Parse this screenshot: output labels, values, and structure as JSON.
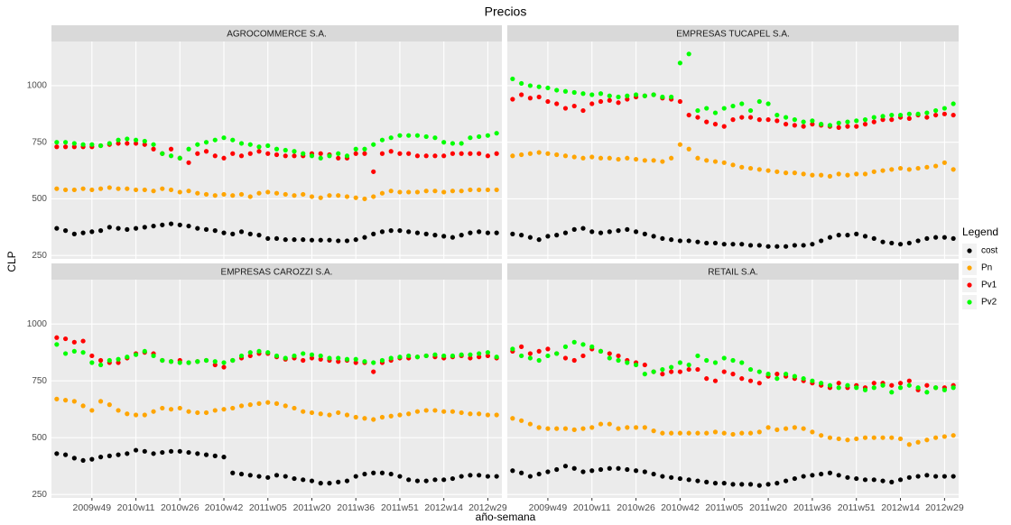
{
  "chart_data": {
    "type": "scatter",
    "title": "Precios",
    "x_label": "año-semana",
    "y_label": "CLP",
    "legend_title": "Legend",
    "legend_position": "right",
    "grid": true,
    "categories": [
      null,
      null,
      null,
      null,
      "2009w49",
      null,
      null,
      null,
      null,
      "2010w11",
      null,
      null,
      null,
      null,
      "2010w26",
      null,
      null,
      null,
      null,
      "2010w42",
      null,
      null,
      null,
      null,
      "2011w05",
      null,
      null,
      null,
      null,
      "2011w20",
      null,
      null,
      null,
      null,
      "2011w36",
      null,
      null,
      null,
      null,
      "2011w51",
      null,
      null,
      null,
      null,
      "2012w14",
      null,
      null,
      null,
      null,
      "2012w29",
      null
    ],
    "ylim": [
      235,
      1195
    ],
    "yticks": [
      250,
      500,
      750,
      1000
    ],
    "series": [
      {
        "name": "cost",
        "color": "#000000"
      },
      {
        "name": "Pn",
        "color": "#FFA500"
      },
      {
        "name": "Pv1",
        "color": "#FF0000"
      },
      {
        "name": "Pv2",
        "color": "#00FF00"
      }
    ],
    "facets": [
      {
        "title": "AGROCOMMERCE S.A.",
        "values": [
          [
            370,
            360,
            345,
            350,
            355,
            360,
            375,
            370,
            365,
            370,
            375,
            380,
            385,
            390,
            385,
            380,
            370,
            365,
            360,
            350,
            345,
            355,
            345,
            340,
            325,
            325,
            320,
            320,
            320,
            318,
            318,
            318,
            315,
            315,
            320,
            330,
            345,
            355,
            360,
            360,
            355,
            350,
            345,
            340,
            335,
            330,
            340,
            350,
            355,
            350,
            350
          ],
          [
            545,
            540,
            540,
            545,
            540,
            545,
            550,
            545,
            545,
            540,
            540,
            535,
            545,
            540,
            530,
            535,
            525,
            520,
            515,
            520,
            515,
            520,
            510,
            525,
            530,
            525,
            520,
            515,
            520,
            510,
            505,
            515,
            515,
            510,
            505,
            500,
            510,
            525,
            535,
            530,
            530,
            530,
            535,
            535,
            530,
            535,
            535,
            540,
            540,
            540,
            540
          ],
          [
            730,
            730,
            730,
            730,
            730,
            735,
            740,
            745,
            745,
            745,
            740,
            720,
            700,
            720,
            680,
            660,
            700,
            710,
            690,
            680,
            700,
            690,
            700,
            710,
            700,
            695,
            690,
            690,
            690,
            700,
            700,
            695,
            680,
            680,
            700,
            700,
            620,
            700,
            710,
            700,
            700,
            690,
            690,
            690,
            690,
            700,
            700,
            700,
            700,
            690,
            700
          ],
          [
            750,
            750,
            745,
            740,
            740,
            735,
            745,
            760,
            765,
            760,
            755,
            740,
            700,
            690,
            680,
            720,
            740,
            750,
            760,
            770,
            760,
            745,
            740,
            730,
            735,
            720,
            715,
            710,
            700,
            690,
            680,
            690,
            700,
            690,
            720,
            720,
            740,
            760,
            770,
            780,
            780,
            780,
            775,
            770,
            750,
            745,
            745,
            770,
            775,
            780,
            790
          ]
        ]
      },
      {
        "title": "EMPRESAS TUCAPEL S.A.",
        "values": [
          [
            345,
            340,
            330,
            320,
            335,
            340,
            350,
            365,
            370,
            355,
            350,
            355,
            360,
            365,
            355,
            345,
            335,
            325,
            320,
            315,
            315,
            310,
            305,
            305,
            300,
            300,
            300,
            295,
            295,
            290,
            290,
            290,
            295,
            295,
            300,
            315,
            330,
            340,
            340,
            345,
            335,
            325,
            310,
            305,
            300,
            305,
            315,
            325,
            330,
            330,
            325
          ],
          [
            690,
            695,
            700,
            705,
            700,
            695,
            690,
            685,
            680,
            685,
            680,
            680,
            675,
            680,
            675,
            670,
            670,
            665,
            680,
            740,
            720,
            680,
            670,
            665,
            660,
            650,
            640,
            635,
            630,
            625,
            620,
            615,
            615,
            610,
            605,
            605,
            600,
            610,
            605,
            610,
            610,
            620,
            625,
            630,
            635,
            630,
            635,
            640,
            645,
            660,
            630
          ],
          [
            940,
            960,
            945,
            950,
            930,
            920,
            900,
            910,
            890,
            920,
            930,
            935,
            925,
            940,
            950,
            955,
            960,
            945,
            940,
            930,
            870,
            860,
            840,
            830,
            820,
            850,
            860,
            860,
            850,
            850,
            845,
            830,
            825,
            820,
            830,
            825,
            820,
            815,
            820,
            820,
            830,
            840,
            850,
            850,
            860,
            855,
            870,
            860,
            870,
            875,
            870
          ],
          [
            1030,
            1010,
            1000,
            995,
            990,
            980,
            975,
            970,
            965,
            960,
            965,
            955,
            950,
            955,
            960,
            955,
            960,
            950,
            950,
            1100,
            1140,
            890,
            900,
            880,
            900,
            910,
            920,
            890,
            930,
            920,
            870,
            860,
            850,
            840,
            845,
            830,
            825,
            835,
            840,
            845,
            850,
            860,
            865,
            870,
            870,
            875,
            875,
            880,
            890,
            900,
            920
          ]
        ]
      },
      {
        "title": "EMPRESAS CAROZZI S.A.",
        "values": [
          [
            430,
            425,
            410,
            400,
            405,
            415,
            420,
            425,
            430,
            445,
            440,
            430,
            435,
            440,
            440,
            435,
            430,
            425,
            420,
            415,
            345,
            340,
            335,
            330,
            325,
            335,
            330,
            320,
            315,
            310,
            300,
            300,
            305,
            310,
            330,
            340,
            345,
            345,
            340,
            330,
            315,
            310,
            310,
            315,
            315,
            320,
            330,
            335,
            335,
            330,
            330
          ],
          [
            670,
            665,
            660,
            640,
            620,
            660,
            645,
            620,
            605,
            600,
            600,
            615,
            630,
            625,
            630,
            615,
            610,
            610,
            620,
            625,
            630,
            640,
            645,
            650,
            655,
            650,
            640,
            630,
            615,
            610,
            605,
            600,
            610,
            600,
            590,
            585,
            580,
            590,
            595,
            600,
            605,
            615,
            620,
            620,
            615,
            615,
            610,
            605,
            605,
            600,
            600
          ],
          [
            940,
            935,
            920,
            925,
            860,
            840,
            830,
            830,
            850,
            870,
            875,
            870,
            840,
            835,
            840,
            830,
            835,
            840,
            820,
            810,
            840,
            850,
            860,
            870,
            870,
            855,
            845,
            850,
            840,
            850,
            845,
            840,
            835,
            840,
            830,
            830,
            790,
            830,
            840,
            850,
            850,
            855,
            860,
            855,
            850,
            855,
            860,
            850,
            855,
            860,
            850
          ],
          [
            910,
            870,
            880,
            875,
            830,
            820,
            840,
            845,
            855,
            865,
            880,
            860,
            840,
            835,
            830,
            830,
            835,
            840,
            835,
            830,
            840,
            860,
            875,
            880,
            875,
            860,
            850,
            860,
            870,
            865,
            860,
            850,
            850,
            845,
            845,
            835,
            830,
            840,
            850,
            855,
            860,
            855,
            860,
            865,
            860,
            860,
            865,
            865,
            870,
            875,
            855
          ]
        ]
      },
      {
        "title": "RETAIL S.A.",
        "values": [
          [
            355,
            345,
            330,
            340,
            350,
            360,
            375,
            365,
            350,
            355,
            360,
            365,
            365,
            360,
            355,
            350,
            340,
            330,
            325,
            320,
            315,
            310,
            305,
            300,
            300,
            295,
            295,
            295,
            290,
            295,
            300,
            310,
            320,
            330,
            335,
            340,
            345,
            335,
            325,
            320,
            315,
            315,
            310,
            305,
            315,
            325,
            330,
            335,
            330,
            330,
            330
          ],
          [
            585,
            575,
            560,
            545,
            540,
            540,
            540,
            535,
            540,
            545,
            560,
            560,
            540,
            545,
            545,
            545,
            530,
            520,
            520,
            520,
            520,
            520,
            520,
            525,
            520,
            515,
            520,
            520,
            525,
            545,
            535,
            540,
            545,
            540,
            525,
            510,
            500,
            495,
            490,
            495,
            500,
            500,
            500,
            500,
            495,
            470,
            480,
            490,
            500,
            505,
            510
          ],
          [
            880,
            900,
            870,
            880,
            890,
            870,
            850,
            840,
            860,
            890,
            880,
            870,
            860,
            840,
            830,
            820,
            790,
            780,
            790,
            790,
            800,
            800,
            760,
            750,
            790,
            780,
            760,
            750,
            740,
            770,
            780,
            770,
            760,
            750,
            740,
            730,
            720,
            740,
            720,
            730,
            720,
            740,
            740,
            730,
            740,
            750,
            710,
            730,
            720,
            720,
            730
          ],
          [
            890,
            860,
            850,
            840,
            860,
            870,
            900,
            920,
            910,
            900,
            880,
            850,
            840,
            830,
            820,
            780,
            790,
            800,
            810,
            830,
            820,
            860,
            840,
            830,
            850,
            840,
            830,
            800,
            790,
            780,
            760,
            780,
            770,
            760,
            750,
            740,
            730,
            720,
            730,
            720,
            710,
            720,
            730,
            700,
            720,
            730,
            720,
            700,
            720,
            710,
            720
          ]
        ]
      }
    ]
  }
}
